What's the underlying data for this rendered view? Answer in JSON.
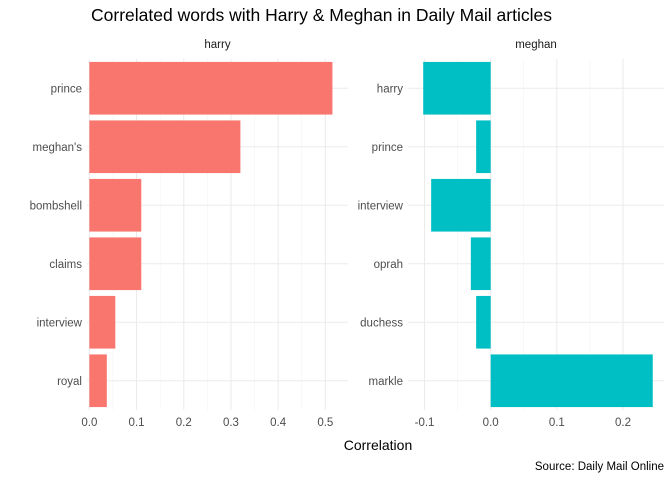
{
  "chart_data": {
    "type": "bar",
    "orientation": "horizontal",
    "title": "Correlated words with Harry & Meghan in Daily Mail articles",
    "xlabel": "Correlation",
    "caption": "Source: Daily Mail Online",
    "grid": true,
    "panels": [
      {
        "name": "harry",
        "color": "#F8766D",
        "xlim": [
          -0.005,
          0.548
        ],
        "xticks": [
          "0.0",
          "0.1",
          "0.2",
          "0.3",
          "0.4",
          "0.5"
        ],
        "categories": [
          "prince",
          "meghan's",
          "bombshell",
          "claims",
          "interview",
          "royal"
        ],
        "values": [
          0.515,
          0.32,
          0.11,
          0.11,
          0.055,
          0.037
        ]
      },
      {
        "name": "meghan",
        "color": "#00BFC4",
        "xlim": [
          -0.125,
          0.262
        ],
        "xticks": [
          "-0.1",
          "0.0",
          "0.1",
          "0.2"
        ],
        "categories": [
          "harry",
          "prince",
          "interview",
          "oprah",
          "duchess",
          "markle"
        ],
        "values": [
          -0.102,
          -0.022,
          -0.09,
          -0.03,
          -0.022,
          0.245
        ]
      }
    ]
  }
}
